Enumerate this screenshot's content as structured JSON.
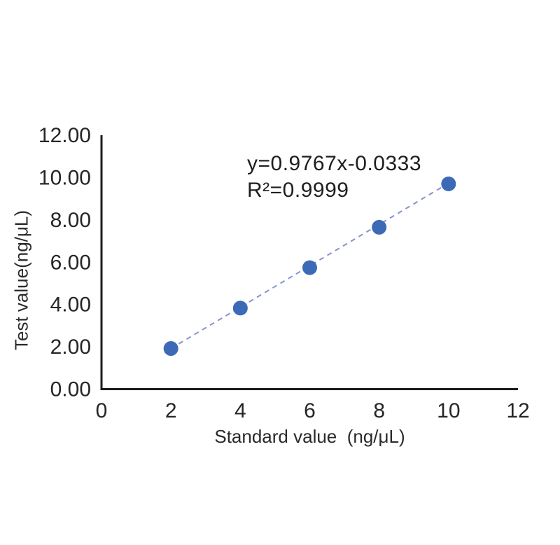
{
  "chart_data": {
    "type": "scatter",
    "title": "",
    "xlabel": "Standard value  (ng/μL)",
    "ylabel": "Test value(ng/μL)",
    "x": [
      2,
      4,
      6,
      8,
      10
    ],
    "y": [
      1.92,
      3.83,
      5.74,
      7.65,
      9.7
    ],
    "xlim": [
      0,
      12
    ],
    "ylim": [
      0,
      12
    ],
    "grid": false,
    "legend": false,
    "xticks": {
      "values": [
        0,
        2,
        4,
        6,
        8,
        10,
        12
      ],
      "labels": [
        "0",
        "2",
        "4",
        "6",
        "8",
        "10",
        "12"
      ]
    },
    "yticks": {
      "values": [
        0,
        2,
        4,
        6,
        8,
        10,
        12
      ],
      "labels": [
        "0.00",
        "2.00",
        "4.00",
        "6.00",
        "8.00",
        "10.00",
        "12.00"
      ]
    },
    "trendline": {
      "style": "dashed",
      "slope": 0.9767,
      "intercept": -0.0333,
      "x_start": 2,
      "x_end": 10
    },
    "annotation": {
      "equation": "y=0.9767x-0.0333",
      "r_squared": "R²=0.9999"
    },
    "colors": {
      "marker": "#3c6ab6",
      "trendline": "#8492d4",
      "axis": "#1c1c1c",
      "tick_text": "#262626",
      "annotation_text": "#1f1f1f"
    }
  }
}
